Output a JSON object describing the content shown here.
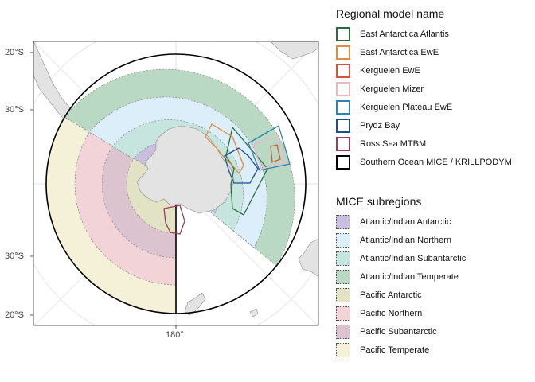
{
  "map": {
    "lat_labels": [
      "20°S",
      "30°S",
      "30°S",
      "20°S"
    ],
    "lon_label": "180°",
    "colors": {
      "land": "#e3e3e3",
      "land_border": "#8c8c8c",
      "panel_border": "#333333",
      "graticule": "#e6e6e6"
    }
  },
  "regional_legend": {
    "title": "Regional model name",
    "items": [
      {
        "label": "East Antarctica Atlantis",
        "color": "#2e6b3a"
      },
      {
        "label": "East Antarctica EwE",
        "color": "#e58a3c"
      },
      {
        "label": "Kerguelen EwE",
        "color": "#d2553a"
      },
      {
        "label": "Kerguelen Mizer",
        "color": "#f2b6bf"
      },
      {
        "label": "Kerguelen Plateau EwE",
        "color": "#2f82b4"
      },
      {
        "label": "Prydz Bay",
        "color": "#1f4d8a"
      },
      {
        "label": "Ross Sea MTBM",
        "color": "#9a3e58"
      },
      {
        "label": "Southern Ocean MICE / KRILLPODYM",
        "color": "#000000"
      }
    ]
  },
  "mice_legend": {
    "title": "MICE subregions",
    "items": [
      {
        "label": "Atlantic/Indian Antarctic",
        "color": "#c7bfdd"
      },
      {
        "label": "Atlantic/Indian Northern",
        "color": "#dbeefa"
      },
      {
        "label": "Atlantic/Indian Subantarctic",
        "color": "#c7e5df"
      },
      {
        "label": "Atlantic/Indian Temperate",
        "color": "#b9d9c4"
      },
      {
        "label": "Pacific Antarctic",
        "color": "#e2e2c4"
      },
      {
        "label": "Pacific Northern",
        "color": "#f2d3d8"
      },
      {
        "label": "Pacific Subantarctic",
        "color": "#dcc3d0"
      },
      {
        "label": "Pacific Temperate",
        "color": "#f5f0d8"
      }
    ]
  }
}
